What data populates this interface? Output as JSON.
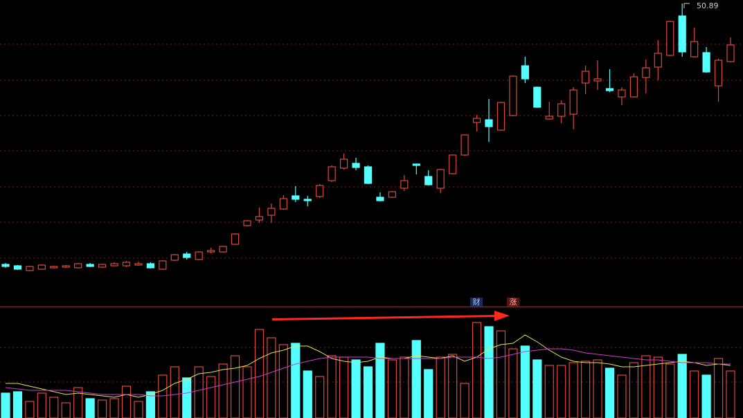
{
  "chart_data": [
    {
      "type": "candlestick",
      "up_color": "#e0473d",
      "down_color": "#54ffff",
      "ylim": [
        7.39,
        51.39
      ],
      "open": [
        13.19,
        12.99,
        12.29,
        12.49,
        12.69,
        12.79,
        12.69,
        13.19,
        12.79,
        12.99,
        12.99,
        13.09,
        13.29,
        12.49,
        13.79,
        14.69,
        13.89,
        14.99,
        14.99,
        16.09,
        18.79,
        19.59,
        20.29,
        21.19,
        23.09,
        22.59,
        22.99,
        25.29,
        27.09,
        27.79,
        27.29,
        22.89,
        22.89,
        24.19,
        27.69,
        25.89,
        24.19,
        26.29,
        28.99,
        33.69,
        34.09,
        32.59,
        34.69,
        41.89,
        38.79,
        34.19,
        34.59,
        34.89,
        39.39,
        39.69,
        38.59,
        37.39,
        37.39,
        40.19,
        41.69,
        43.39,
        49.09,
        43.19,
        43.79,
        38.99,
        42.49
      ],
      "high": [
        13.39,
        13.09,
        12.99,
        13.19,
        12.99,
        13.09,
        13.39,
        13.39,
        13.29,
        13.49,
        13.69,
        13.59,
        13.49,
        13.79,
        14.69,
        14.99,
        15.09,
        15.59,
        15.89,
        17.69,
        19.59,
        21.39,
        21.99,
        23.19,
        24.49,
        23.09,
        24.79,
        27.49,
        29.19,
        28.59,
        27.49,
        23.59,
        23.79,
        26.09,
        27.69,
        26.79,
        26.99,
        29.09,
        31.99,
        34.79,
        37.09,
        36.69,
        40.49,
        43.19,
        38.89,
        36.69,
        36.89,
        38.79,
        41.89,
        42.69,
        41.39,
        38.79,
        40.79,
        42.79,
        45.59,
        48.39,
        50.89,
        47.39,
        44.59,
        42.89,
        45.99
      ],
      "low": [
        12.69,
        12.39,
        12.19,
        12.39,
        12.59,
        12.69,
        12.59,
        12.79,
        12.69,
        12.89,
        12.79,
        12.99,
        12.59,
        12.39,
        13.69,
        13.89,
        13.79,
        14.79,
        14.89,
        15.99,
        18.69,
        19.19,
        19.19,
        21.09,
        22.19,
        21.59,
        22.79,
        25.09,
        26.89,
        26.79,
        24.79,
        22.29,
        22.79,
        23.79,
        26.19,
        24.59,
        23.49,
        26.19,
        28.89,
        32.39,
        30.89,
        32.49,
        34.59,
        39.39,
        35.79,
        34.09,
        33.59,
        32.69,
        37.79,
        38.39,
        38.09,
        36.19,
        37.29,
        37.89,
        39.79,
        43.29,
        43.19,
        43.09,
        40.89,
        36.69,
        42.39
      ],
      "close": [
        12.89,
        12.49,
        12.89,
        13.09,
        12.89,
        12.99,
        13.29,
        12.89,
        13.19,
        13.29,
        13.49,
        13.29,
        12.69,
        13.69,
        14.59,
        14.19,
        14.99,
        15.19,
        15.79,
        17.59,
        19.49,
        20.09,
        21.29,
        22.69,
        22.59,
        22.39,
        24.59,
        27.29,
        28.39,
        27.19,
        24.89,
        22.39,
        23.69,
        25.29,
        27.49,
        24.69,
        26.89,
        28.99,
        31.89,
        34.29,
        33.09,
        36.59,
        40.39,
        39.99,
        35.89,
        34.59,
        36.39,
        38.39,
        41.09,
        39.99,
        38.29,
        38.39,
        40.29,
        41.59,
        43.69,
        48.29,
        43.89,
        45.39,
        40.99,
        42.69,
        44.89
      ],
      "annotations": [
        "财",
        "涨"
      ]
    },
    {
      "type": "bar",
      "ylim": [
        0,
        160
      ],
      "values": [
        36,
        38,
        24,
        36,
        30,
        22,
        44,
        28,
        26,
        28,
        46,
        24,
        38,
        62,
        74,
        58,
        74,
        60,
        78,
        90,
        74,
        128,
        116,
        106,
        108,
        68,
        60,
        90,
        88,
        84,
        74,
        108,
        84,
        88,
        112,
        70,
        88,
        92,
        50,
        138,
        132,
        126,
        100,
        104,
        84,
        76,
        76,
        80,
        82,
        84,
        72,
        62,
        80,
        90,
        88,
        78,
        92,
        68,
        62,
        86,
        68
      ],
      "series": [
        {
          "color": "#e6e64c",
          "values": [
            50,
            50,
            46,
            42,
            38,
            34,
            36,
            34,
            32,
            30,
            34,
            30,
            34,
            40,
            50,
            56,
            64,
            66,
            70,
            72,
            76,
            86,
            94,
            98,
            104,
            104,
            96,
            86,
            82,
            80,
            82,
            88,
            86,
            86,
            90,
            88,
            86,
            90,
            82,
            88,
            100,
            106,
            108,
            120,
            110,
            98,
            88,
            82,
            80,
            80,
            78,
            74,
            74,
            76,
            78,
            80,
            82,
            80,
            76,
            78,
            76
          ]
        },
        {
          "color": "#d23cd2",
          "values": [
            44,
            42,
            40,
            40,
            40,
            40,
            38,
            36,
            34,
            34,
            34,
            34,
            32,
            32,
            34,
            36,
            40,
            44,
            48,
            52,
            56,
            60,
            66,
            72,
            78,
            82,
            86,
            88,
            88,
            88,
            88,
            86,
            86,
            86,
            86,
            86,
            86,
            88,
            88,
            88,
            86,
            88,
            92,
            96,
            98,
            100,
            100,
            98,
            94,
            92,
            90,
            88,
            86,
            84,
            84,
            82,
            80,
            80,
            80,
            78,
            78
          ]
        }
      ]
    }
  ]
}
